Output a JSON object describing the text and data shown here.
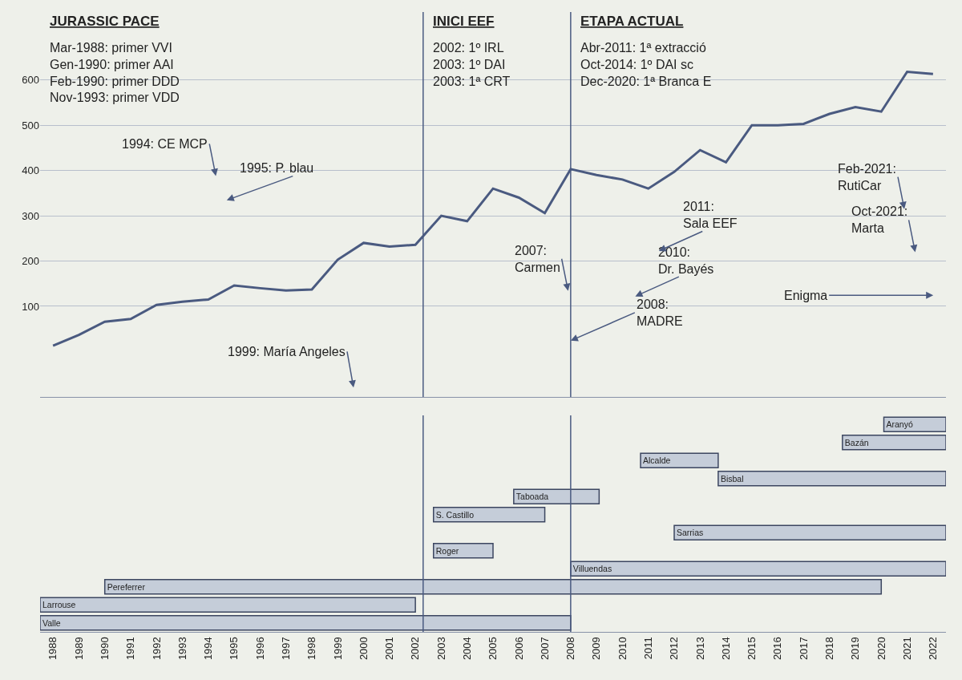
{
  "chart_data": [
    {
      "type": "line",
      "x": [
        1988,
        1989,
        1990,
        1991,
        1992,
        1993,
        1994,
        1995,
        1996,
        1997,
        1998,
        1999,
        2000,
        2001,
        2002,
        2003,
        2004,
        2005,
        2006,
        2007,
        2008,
        2009,
        2010,
        2011,
        2012,
        2013,
        2014,
        2015,
        2016,
        2017,
        2018,
        2019,
        2020,
        2021,
        2022
      ],
      "series": [
        {
          "color": "#4a5a80",
          "values": [
            13,
            37,
            66,
            72,
            103,
            110,
            115,
            146,
            140,
            135,
            137,
            203,
            240,
            232,
            236,
            300,
            288,
            360,
            340,
            306,
            403,
            390,
            380,
            360,
            397,
            445,
            418,
            500,
            500,
            503,
            525,
            540,
            530,
            618,
            613
          ]
        }
      ],
      "xlim": [
        1987.5,
        2022.5
      ],
      "xticks": [
        1988,
        1989,
        1990,
        1991,
        1992,
        1993,
        1994,
        1995,
        1996,
        1997,
        1998,
        1999,
        2000,
        2001,
        2002,
        2003,
        2004,
        2005,
        2006,
        2007,
        2008,
        2009,
        2010,
        2011,
        2012,
        2013,
        2014,
        2015,
        2016,
        2017,
        2018,
        2019,
        2020,
        2021,
        2022
      ],
      "ylim": [
        -100,
        750
      ],
      "yticks": [
        100,
        200,
        300,
        400,
        500,
        600
      ],
      "tick_labels": "y",
      "grid": "y",
      "ref_lines": [
        {
          "axis": "x",
          "value": 2002.3,
          "color": "#4a5a80"
        },
        {
          "axis": "x",
          "value": 2008,
          "color": "#4a5a80"
        }
      ],
      "annotations": [
        "JURASSIC PACE",
        "Mar-1988: primer VVI\nGen-1990: primer AAI\nFeb-1990: primer DDD\nNov-1993: primer VDD",
        "INICI EEF",
        "2002: 1º IRL\n2003: 1º DAI\n2003: 1ª CRT",
        "ETAPA ACTUAL",
        "Abr-2011: 1ª extracció\nOct-2014: 1º DAI sc\nDec-2020: 1ª Branca E",
        "1994: CE MCP",
        "1995: P. blau",
        "1999: María Angeles",
        {
          "text": "2007:\nCarmen",
          "x": 2007.9,
          "y": 134
        },
        {
          "text": "2008:\nMADRE",
          "x": 2008,
          "y": 24
        },
        "2010:\nDr. Bayés",
        "2011:\nSala EEF",
        "Feb-2021:\nRutiCar",
        "Oct-2021:\nMarta",
        "Enigma"
      ]
    },
    {
      "type": "bar",
      "orientation": "horizontal",
      "categories": [
        "Aranyó",
        "Bazán",
        "Alcalde",
        "Bisbal",
        "Taboada",
        "S. Castillo",
        "Sarrias",
        "Roger",
        "Villuendas",
        "Pereferrer",
        "Larrouse",
        "Valle"
      ],
      "base": [
        2020.1,
        2018.5,
        2010.7,
        2013.7,
        2005.8,
        2002.7,
        2012,
        2002.7,
        2008,
        1990,
        1987.5,
        1987.5
      ],
      "values": [
        2.4,
        4.0,
        3.0,
        8.8,
        3.3,
        4.3,
        10.5,
        2.3,
        14.5,
        30,
        14.5,
        20.5
      ],
      "color": "#c5cdd9",
      "xlim": [
        1987.5,
        2022.5
      ],
      "xticks": [
        1988,
        1989,
        1990,
        1991,
        1992,
        1993,
        1994,
        1995,
        1996,
        1997,
        1998,
        1999,
        2000,
        2001,
        2002,
        2003,
        2004,
        2005,
        2006,
        2007,
        2008,
        2009,
        2010,
        2011,
        2012,
        2013,
        2014,
        2015,
        2016,
        2017,
        2018,
        2019,
        2020,
        2021,
        2022
      ],
      "tick_labels": "x",
      "ref_lines": [
        {
          "axis": "x",
          "value": 2002.3,
          "color": "#4a5a80"
        },
        {
          "axis": "x",
          "value": 2008,
          "color": "#4a5a80"
        }
      ]
    }
  ]
}
